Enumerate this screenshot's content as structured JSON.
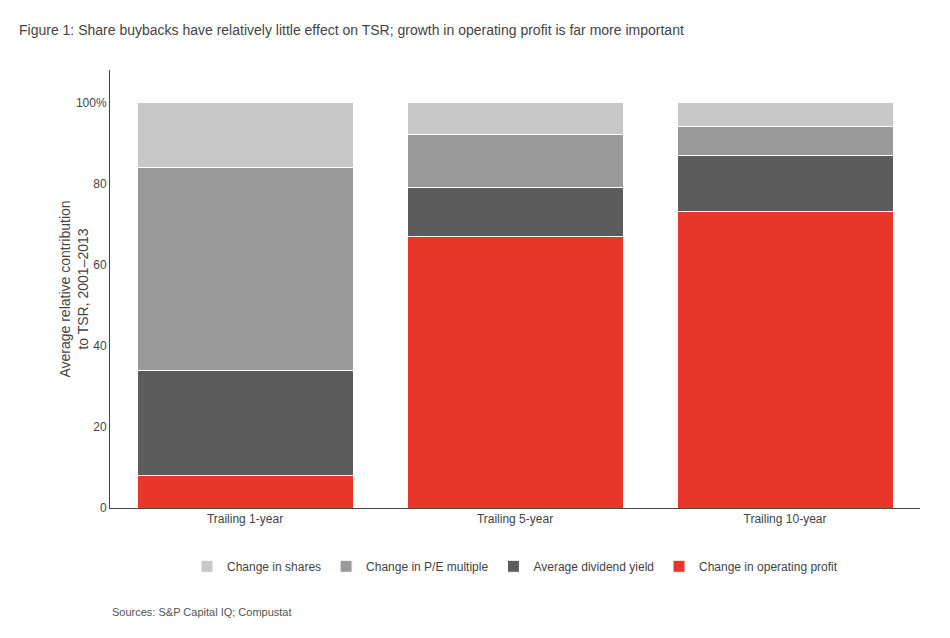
{
  "chart_data": {
    "type": "bar",
    "stacked": true,
    "title": "Figure 1: Share buybacks have relatively little effect on TSR; growth in operating profit is far more important",
    "ylabel": "Average relative contribution\nto TSR, 2001–2013",
    "categories": [
      "Trailing 1-year",
      "Trailing 5-year",
      "Trailing 10-year"
    ],
    "series": [
      {
        "name": "Change in operating profit",
        "color": "#E8372A",
        "values": [
          8,
          67,
          73
        ]
      },
      {
        "name": "Average dividend yield",
        "color": "#5C5C5C",
        "values": [
          26,
          12,
          14
        ]
      },
      {
        "name": "Change in P/E multiple",
        "color": "#9A9A9A",
        "values": [
          50,
          13,
          7
        ]
      },
      {
        "name": "Change in shares",
        "color": "#C8C8C8",
        "values": [
          16,
          8,
          6
        ]
      }
    ],
    "ylim": [
      0,
      108
    ],
    "yticks": [
      0,
      20,
      40,
      60,
      80,
      {
        "value": 100,
        "label": "100%"
      }
    ],
    "grid": false,
    "legend": "bottom",
    "annotations": [
      "Sources: S&P Capital IQ; Compustat"
    ]
  }
}
